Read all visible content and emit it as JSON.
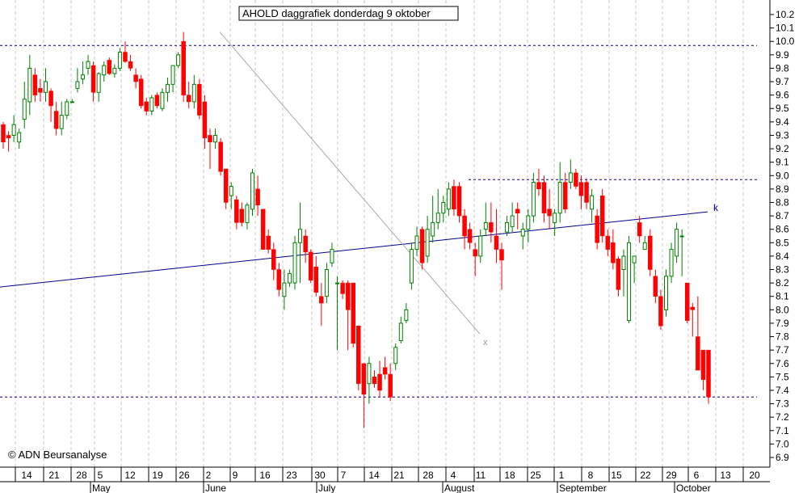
{
  "chart_data": {
    "type": "candlestick",
    "title": "AHOLD daggrafiek donderdag 9 oktober",
    "copyright": "© ADN Beursanalyse",
    "ylim": [
      6.9,
      10.2
    ],
    "y_ticks": [
      "6.9",
      "7.0",
      "7.1",
      "7.2",
      "7.3",
      "7.4",
      "7.5",
      "7.6",
      "7.7",
      "7.8",
      "7.9",
      "8.0",
      "8.1",
      "8.2",
      "8.3",
      "8.4",
      "8.5",
      "8.6",
      "8.7",
      "8.8",
      "8.9",
      "9.0",
      "9.1",
      "9.2",
      "9.3",
      "9.4",
      "9.5",
      "9.6",
      "9.7",
      "9.8",
      "9.9",
      "10.0",
      "10.1",
      "10.2"
    ],
    "x_day_labels": [
      "14",
      "21",
      "28",
      "5",
      "12",
      "19",
      "26",
      "2",
      "9",
      "16",
      "23",
      "30",
      "7",
      "14",
      "21",
      "28",
      "4",
      "11",
      "18",
      "25",
      "1",
      "8",
      "15",
      "22",
      "29",
      "6",
      "13",
      "20"
    ],
    "x_month_labels": [
      "May",
      "June",
      "July",
      "August",
      "September",
      "October"
    ],
    "colors": {
      "up": "#008000",
      "down": "#ff0000",
      "trendline": "#00008b",
      "support": "#00008b",
      "fan_line": "#aaaaaa"
    },
    "grid": true,
    "horizontal_lines": [
      9.97,
      8.97,
      7.35
    ],
    "trendline": {
      "start": 8.17,
      "end": 8.73,
      "label": "k"
    },
    "fan_line": {
      "start": 10.07,
      "end": 7.82,
      "label": "x"
    },
    "candles": [
      {
        "o": 9.38,
        "h": 9.4,
        "l": 9.2,
        "c": 9.25
      },
      {
        "o": 9.3,
        "h": 9.33,
        "l": 9.18,
        "c": 9.28
      },
      {
        "o": 9.3,
        "h": 9.45,
        "l": 9.25,
        "c": 9.38
      },
      {
        "o": 9.25,
        "h": 9.35,
        "l": 9.2,
        "c": 9.32
      },
      {
        "o": 9.42,
        "h": 9.7,
        "l": 9.35,
        "c": 9.57
      },
      {
        "o": 9.55,
        "h": 9.9,
        "l": 9.45,
        "c": 9.8
      },
      {
        "o": 9.75,
        "h": 9.8,
        "l": 9.55,
        "c": 9.6
      },
      {
        "o": 9.65,
        "h": 9.72,
        "l": 9.55,
        "c": 9.62
      },
      {
        "o": 9.62,
        "h": 9.8,
        "l": 9.55,
        "c": 9.7
      },
      {
        "o": 9.63,
        "h": 9.65,
        "l": 9.4,
        "c": 9.52
      },
      {
        "o": 9.48,
        "h": 9.55,
        "l": 9.3,
        "c": 9.35
      },
      {
        "o": 9.35,
        "h": 9.55,
        "l": 9.3,
        "c": 9.45
      },
      {
        "o": 9.45,
        "h": 9.57,
        "l": 9.42,
        "c": 9.55
      },
      {
        "o": 9.55,
        "h": 9.57,
        "l": 9.55,
        "c": 9.55
      },
      {
        "o": 9.65,
        "h": 9.8,
        "l": 9.62,
        "c": 9.7
      },
      {
        "o": 9.72,
        "h": 9.85,
        "l": 9.68,
        "c": 9.75
      },
      {
        "o": 9.8,
        "h": 9.9,
        "l": 9.75,
        "c": 9.85
      },
      {
        "o": 9.82,
        "h": 9.85,
        "l": 9.55,
        "c": 9.62
      },
      {
        "o": 9.62,
        "h": 9.77,
        "l": 9.55,
        "c": 9.76
      },
      {
        "o": 9.75,
        "h": 9.85,
        "l": 9.7,
        "c": 9.82
      },
      {
        "o": 9.86,
        "h": 9.88,
        "l": 9.75,
        "c": 9.76
      },
      {
        "o": 9.76,
        "h": 9.83,
        "l": 9.73,
        "c": 9.8
      },
      {
        "o": 9.8,
        "h": 9.95,
        "l": 9.78,
        "c": 9.92
      },
      {
        "o": 9.92,
        "h": 10.0,
        "l": 9.84,
        "c": 9.85
      },
      {
        "o": 9.85,
        "h": 9.9,
        "l": 9.78,
        "c": 9.8
      },
      {
        "o": 9.75,
        "h": 9.8,
        "l": 9.65,
        "c": 9.7
      },
      {
        "o": 9.72,
        "h": 9.75,
        "l": 9.5,
        "c": 9.52
      },
      {
        "o": 9.55,
        "h": 9.58,
        "l": 9.45,
        "c": 9.48
      },
      {
        "o": 9.48,
        "h": 9.6,
        "l": 9.45,
        "c": 9.58
      },
      {
        "o": 9.6,
        "h": 9.62,
        "l": 9.5,
        "c": 9.52
      },
      {
        "o": 9.5,
        "h": 9.65,
        "l": 9.48,
        "c": 9.62
      },
      {
        "o": 9.62,
        "h": 9.73,
        "l": 9.55,
        "c": 9.68
      },
      {
        "o": 9.68,
        "h": 9.82,
        "l": 9.62,
        "c": 9.82
      },
      {
        "o": 9.82,
        "h": 9.92,
        "l": 9.8,
        "c": 9.9
      },
      {
        "o": 10.0,
        "h": 10.07,
        "l": 9.55,
        "c": 9.6
      },
      {
        "o": 9.6,
        "h": 9.7,
        "l": 9.5,
        "c": 9.55
      },
      {
        "o": 9.55,
        "h": 9.75,
        "l": 9.5,
        "c": 9.68
      },
      {
        "o": 9.68,
        "h": 9.72,
        "l": 9.42,
        "c": 9.45
      },
      {
        "o": 9.55,
        "h": 9.6,
        "l": 9.2,
        "c": 9.28
      },
      {
        "o": 9.3,
        "h": 9.35,
        "l": 9.05,
        "c": 9.25
      },
      {
        "o": 9.25,
        "h": 9.35,
        "l": 9.2,
        "c": 9.3
      },
      {
        "o": 9.25,
        "h": 9.28,
        "l": 9.0,
        "c": 9.03
      },
      {
        "o": 9.05,
        "h": 9.05,
        "l": 8.75,
        "c": 8.8
      },
      {
        "o": 8.85,
        "h": 8.95,
        "l": 8.75,
        "c": 8.92
      },
      {
        "o": 8.82,
        "h": 8.85,
        "l": 8.6,
        "c": 8.65
      },
      {
        "o": 8.75,
        "h": 8.8,
        "l": 8.62,
        "c": 8.65
      },
      {
        "o": 8.65,
        "h": 8.8,
        "l": 8.6,
        "c": 8.78
      },
      {
        "o": 8.75,
        "h": 9.05,
        "l": 8.7,
        "c": 9.02
      },
      {
        "o": 8.9,
        "h": 9.0,
        "l": 8.7,
        "c": 8.78
      },
      {
        "o": 8.75,
        "h": 8.75,
        "l": 8.45,
        "c": 8.45
      },
      {
        "o": 8.55,
        "h": 8.6,
        "l": 8.42,
        "c": 8.45
      },
      {
        "o": 8.45,
        "h": 8.5,
        "l": 8.22,
        "c": 8.3
      },
      {
        "o": 8.3,
        "h": 8.35,
        "l": 8.1,
        "c": 8.15
      },
      {
        "o": 8.1,
        "h": 8.3,
        "l": 8.0,
        "c": 8.2
      },
      {
        "o": 8.2,
        "h": 8.3,
        "l": 8.17,
        "c": 8.27
      },
      {
        "o": 8.2,
        "h": 8.55,
        "l": 8.15,
        "c": 8.5
      },
      {
        "o": 8.5,
        "h": 8.8,
        "l": 8.2,
        "c": 8.6
      },
      {
        "o": 8.55,
        "h": 8.6,
        "l": 8.35,
        "c": 8.43
      },
      {
        "o": 8.43,
        "h": 8.45,
        "l": 8.2,
        "c": 8.22
      },
      {
        "o": 8.32,
        "h": 8.4,
        "l": 8.1,
        "c": 8.13
      },
      {
        "o": 8.1,
        "h": 8.2,
        "l": 7.88,
        "c": 8.05
      },
      {
        "o": 8.1,
        "h": 8.35,
        "l": 8.05,
        "c": 8.3
      },
      {
        "o": 8.35,
        "h": 8.5,
        "l": 8.32,
        "c": 8.45
      },
      {
        "o": 8.2,
        "h": 8.25,
        "l": 7.7,
        "c": 8.2
      },
      {
        "o": 8.2,
        "h": 8.22,
        "l": 8.08,
        "c": 8.12
      },
      {
        "o": 8.2,
        "h": 8.22,
        "l": 7.7,
        "c": 8.0
      },
      {
        "o": 8.2,
        "h": 8.2,
        "l": 7.72,
        "c": 7.75
      },
      {
        "o": 7.88,
        "h": 7.88,
        "l": 7.4,
        "c": 7.45
      },
      {
        "o": 7.6,
        "h": 7.6,
        "l": 7.12,
        "c": 7.37
      },
      {
        "o": 7.45,
        "h": 7.65,
        "l": 7.3,
        "c": 7.6
      },
      {
        "o": 7.5,
        "h": 7.55,
        "l": 7.42,
        "c": 7.45
      },
      {
        "o": 7.52,
        "h": 7.62,
        "l": 7.35,
        "c": 7.4
      },
      {
        "o": 7.57,
        "h": 7.65,
        "l": 7.48,
        "c": 7.52
      },
      {
        "o": 7.52,
        "h": 7.6,
        "l": 7.32,
        "c": 7.35
      },
      {
        "o": 7.6,
        "h": 7.75,
        "l": 7.55,
        "c": 7.72
      },
      {
        "o": 7.77,
        "h": 7.95,
        "l": 7.75,
        "c": 7.9
      },
      {
        "o": 7.92,
        "h": 8.05,
        "l": 7.9,
        "c": 8.0
      },
      {
        "o": 8.2,
        "h": 8.5,
        "l": 8.15,
        "c": 8.45
      },
      {
        "o": 8.45,
        "h": 8.62,
        "l": 8.4,
        "c": 8.55
      },
      {
        "o": 8.6,
        "h": 8.62,
        "l": 8.3,
        "c": 8.35
      },
      {
        "o": 8.4,
        "h": 8.7,
        "l": 8.35,
        "c": 8.6
      },
      {
        "o": 8.55,
        "h": 8.85,
        "l": 8.5,
        "c": 8.65
      },
      {
        "o": 8.65,
        "h": 8.9,
        "l": 8.6,
        "c": 8.72
      },
      {
        "o": 8.72,
        "h": 8.85,
        "l": 8.65,
        "c": 8.8
      },
      {
        "o": 8.75,
        "h": 8.95,
        "l": 8.7,
        "c": 8.9
      },
      {
        "o": 8.92,
        "h": 8.97,
        "l": 8.7,
        "c": 8.75
      },
      {
        "o": 8.92,
        "h": 8.95,
        "l": 8.65,
        "c": 8.7
      },
      {
        "o": 8.7,
        "h": 8.75,
        "l": 8.45,
        "c": 8.55
      },
      {
        "o": 8.6,
        "h": 8.65,
        "l": 8.45,
        "c": 8.5
      },
      {
        "o": 8.45,
        "h": 8.5,
        "l": 8.25,
        "c": 8.4
      },
      {
        "o": 8.4,
        "h": 8.6,
        "l": 8.35,
        "c": 8.55
      },
      {
        "o": 8.6,
        "h": 8.8,
        "l": 8.55,
        "c": 8.65
      },
      {
        "o": 8.65,
        "h": 8.8,
        "l": 8.5,
        "c": 8.58
      },
      {
        "o": 8.55,
        "h": 8.75,
        "l": 8.35,
        "c": 8.45
      },
      {
        "o": 8.45,
        "h": 8.5,
        "l": 8.15,
        "c": 8.37
      },
      {
        "o": 8.58,
        "h": 8.7,
        "l": 8.55,
        "c": 8.65
      },
      {
        "o": 8.62,
        "h": 8.8,
        "l": 8.58,
        "c": 8.7
      },
      {
        "o": 8.75,
        "h": 8.8,
        "l": 8.6,
        "c": 8.72
      },
      {
        "o": 8.55,
        "h": 8.65,
        "l": 8.45,
        "c": 8.6
      },
      {
        "o": 8.6,
        "h": 8.75,
        "l": 8.5,
        "c": 8.7
      },
      {
        "o": 8.7,
        "h": 9.02,
        "l": 8.65,
        "c": 8.95
      },
      {
        "o": 8.95,
        "h": 9.05,
        "l": 8.85,
        "c": 8.9
      },
      {
        "o": 8.95,
        "h": 9.0,
        "l": 8.65,
        "c": 8.72
      },
      {
        "o": 8.75,
        "h": 8.9,
        "l": 8.6,
        "c": 8.7
      },
      {
        "o": 8.65,
        "h": 8.75,
        "l": 8.55,
        "c": 8.72
      },
      {
        "o": 8.72,
        "h": 9.1,
        "l": 8.65,
        "c": 8.95
      },
      {
        "o": 8.95,
        "h": 9.02,
        "l": 8.72,
        "c": 8.75
      },
      {
        "o": 8.95,
        "h": 9.12,
        "l": 8.9,
        "c": 9.02
      },
      {
        "o": 9.02,
        "h": 9.05,
        "l": 8.9,
        "c": 8.92
      },
      {
        "o": 8.95,
        "h": 9.0,
        "l": 8.75,
        "c": 8.85
      },
      {
        "o": 8.95,
        "h": 8.98,
        "l": 8.75,
        "c": 8.8
      },
      {
        "o": 8.75,
        "h": 8.9,
        "l": 8.65,
        "c": 8.85
      },
      {
        "o": 8.7,
        "h": 8.75,
        "l": 8.45,
        "c": 8.5
      },
      {
        "o": 8.85,
        "h": 8.9,
        "l": 8.5,
        "c": 8.55
      },
      {
        "o": 8.55,
        "h": 8.6,
        "l": 8.4,
        "c": 8.45
      },
      {
        "o": 8.5,
        "h": 8.6,
        "l": 8.3,
        "c": 8.35
      },
      {
        "o": 8.38,
        "h": 8.4,
        "l": 8.1,
        "c": 8.15
      },
      {
        "o": 8.3,
        "h": 8.45,
        "l": 8.1,
        "c": 8.4
      },
      {
        "o": 7.92,
        "h": 8.55,
        "l": 7.9,
        "c": 8.5
      },
      {
        "o": 8.35,
        "h": 8.4,
        "l": 8.2,
        "c": 8.4
      },
      {
        "o": 8.65,
        "h": 8.7,
        "l": 8.5,
        "c": 8.55
      },
      {
        "o": 8.45,
        "h": 8.55,
        "l": 8.45,
        "c": 8.5
      },
      {
        "o": 8.55,
        "h": 8.6,
        "l": 8.25,
        "c": 8.3
      },
      {
        "o": 8.25,
        "h": 8.3,
        "l": 8.05,
        "c": 8.1
      },
      {
        "o": 8.1,
        "h": 8.15,
        "l": 7.85,
        "c": 7.88
      },
      {
        "o": 8.0,
        "h": 8.3,
        "l": 7.95,
        "c": 8.25
      },
      {
        "o": 8.25,
        "h": 8.5,
        "l": 8.2,
        "c": 8.45
      },
      {
        "o": 8.4,
        "h": 8.65,
        "l": 8.35,
        "c": 8.6
      },
      {
        "o": 8.55,
        "h": 8.6,
        "l": 8.25,
        "c": 8.55
      },
      {
        "o": 8.2,
        "h": 8.2,
        "l": 7.9,
        "c": 7.92
      },
      {
        "o": 8.02,
        "h": 8.05,
        "l": 7.8,
        "c": 8.0
      },
      {
        "o": 7.8,
        "h": 8.1,
        "l": 7.55,
        "c": 7.55
      },
      {
        "o": 7.7,
        "h": 7.7,
        "l": 7.4,
        "c": 7.48
      },
      {
        "o": 7.7,
        "h": 7.7,
        "l": 7.3,
        "c": 7.35
      }
    ]
  }
}
